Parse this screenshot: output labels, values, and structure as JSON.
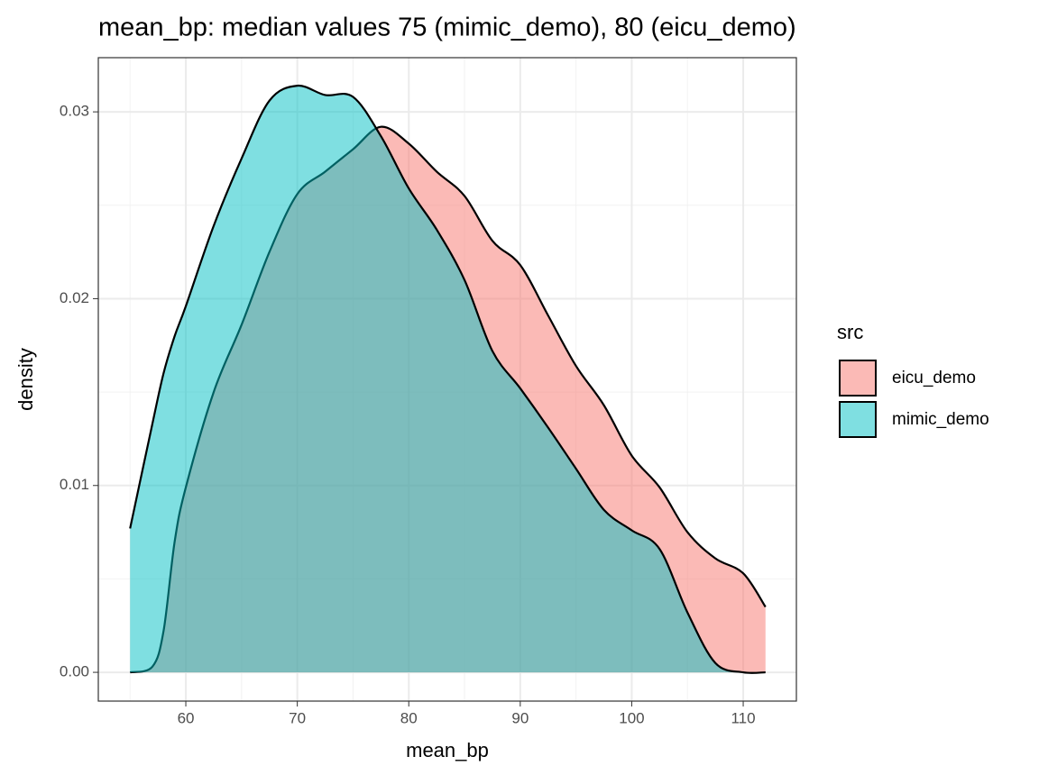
{
  "chart_data": {
    "type": "area",
    "title": "mean_bp: median values 75 (mimic_demo), 80 (eicu_demo)",
    "x_label": "mean_bp",
    "y_label": "density",
    "x": [
      55,
      57,
      58,
      59,
      60,
      62.5,
      65,
      67.5,
      70,
      72.5,
      75,
      77.5,
      80,
      82.5,
      85,
      87.5,
      90,
      92.5,
      95,
      97.5,
      100,
      102.5,
      105,
      107.5,
      110,
      112
    ],
    "series": [
      {
        "name": "eicu_demo",
        "color": "#F8766D",
        "values": [
          0,
          0.0003,
          0.0022,
          0.007,
          0.0099,
          0.015,
          0.0186,
          0.0225,
          0.0256,
          0.0268,
          0.028,
          0.0292,
          0.0283,
          0.0268,
          0.0255,
          0.0231,
          0.0218,
          0.0191,
          0.0164,
          0.0143,
          0.0116,
          0.0099,
          0.0075,
          0.0061,
          0.0053,
          0.0035
        ]
      },
      {
        "name": "mimic_demo",
        "color": "#00BFC4",
        "values": [
          0.0077,
          0.0133,
          0.016,
          0.018,
          0.0196,
          0.0239,
          0.0275,
          0.0306,
          0.0314,
          0.0309,
          0.0308,
          0.0287,
          0.0259,
          0.0237,
          0.021,
          0.0172,
          0.0152,
          0.0131,
          0.0109,
          0.0087,
          0.0076,
          0.0066,
          0.0032,
          0.0005,
          0,
          0
        ]
      }
    ],
    "legend_title": "src",
    "legend": "right",
    "xlim": [
      52.15,
      114.77
    ],
    "xticks": [
      60,
      70,
      80,
      90,
      100,
      110
    ],
    "x_minor_ticks": [
      55,
      65,
      75,
      85,
      95,
      105
    ],
    "ylim": [
      -0.00154,
      0.0329
    ],
    "yticks": [
      {
        "value": 0,
        "label": "0.00"
      },
      0.01,
      0.02,
      0.03
    ],
    "y_minor_ticks": [
      0.005,
      0.015,
      0.025
    ],
    "grid": true,
    "fill_alpha": 0.5
  }
}
